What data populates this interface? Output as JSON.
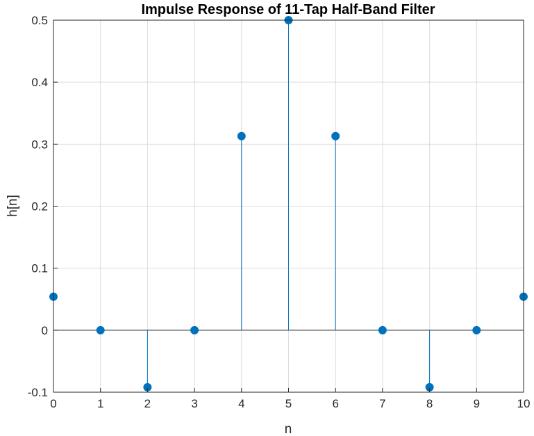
{
  "chart_data": {
    "type": "stem",
    "title": "Impulse Response of 11-Tap Half-Band Filter",
    "xlabel": "n",
    "ylabel": "h[n]",
    "xlim": [
      0,
      10
    ],
    "ylim": [
      -0.1,
      0.5
    ],
    "xticks": [
      "0",
      "1",
      "2",
      "3",
      "4",
      "5",
      "6",
      "7",
      "8",
      "9",
      "10"
    ],
    "yticks": [
      "-0.1",
      "0",
      "0.1",
      "0.2",
      "0.3",
      "0.4",
      "0.5"
    ],
    "grid": true,
    "color": "#0072BD",
    "x": [
      0,
      1,
      2,
      3,
      4,
      5,
      6,
      7,
      8,
      9,
      10
    ],
    "values": [
      0.054,
      0,
      -0.092,
      0,
      0.313,
      0.5,
      0.313,
      0,
      -0.092,
      0,
      0.054
    ]
  }
}
